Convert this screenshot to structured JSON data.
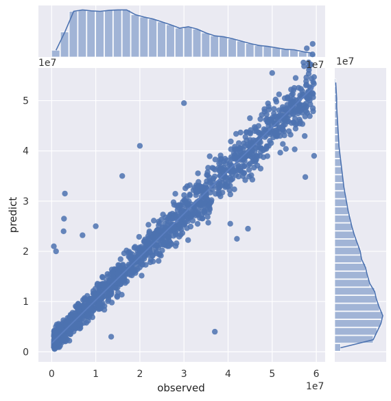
{
  "chart_data": {
    "type": "scatter",
    "subtype": "jointplot-regression-with-marginal-histograms-kde",
    "xlabel": "observed",
    "ylabel": "predict",
    "x_offset_text": "1e7",
    "y_offset_text": "1e7",
    "marginal_x_offset_text": "1e7",
    "marginal_y_offset_text": "1e7",
    "xlim": [
      -0.3,
      6.2
    ],
    "ylim": [
      -0.2,
      5.65
    ],
    "x_ticks": [
      0,
      1,
      2,
      3,
      4,
      5,
      6
    ],
    "y_ticks": [
      0,
      1,
      2,
      3,
      4,
      5
    ],
    "x_tick_labels": [
      "0",
      "1",
      "2",
      "3",
      "4",
      "5",
      "6"
    ],
    "y_tick_labels": [
      "0",
      "1",
      "2",
      "3",
      "4",
      "5"
    ],
    "units_multiplier": 10000000,
    "grid": true,
    "background": "#EAEAF2",
    "point_color": "#4C72B0",
    "hist_color": "#A1B4D6",
    "regression_line": {
      "slope": 0.86,
      "intercept": 0.17
    },
    "outliers": [
      {
        "x": 0.05,
        "y": 2.1
      },
      {
        "x": 0.1,
        "y": 2.0
      },
      {
        "x": 0.3,
        "y": 3.15
      },
      {
        "x": 0.28,
        "y": 2.65
      },
      {
        "x": 0.27,
        "y": 2.4
      },
      {
        "x": 0.7,
        "y": 2.32
      },
      {
        "x": 1.0,
        "y": 2.5
      },
      {
        "x": 1.6,
        "y": 3.5
      },
      {
        "x": 2.0,
        "y": 4.1
      },
      {
        "x": 3.0,
        "y": 4.95
      },
      {
        "x": 3.7,
        "y": 0.4
      },
      {
        "x": 5.0,
        "y": 5.55
      },
      {
        "x": 5.95,
        "y": 3.9
      },
      {
        "x": 5.75,
        "y": 3.48
      },
      {
        "x": 4.45,
        "y": 2.45
      },
      {
        "x": 4.2,
        "y": 2.25
      },
      {
        "x": 1.35,
        "y": 0.3
      },
      {
        "x": 0.55,
        "y": 0.65
      },
      {
        "x": 4.05,
        "y": 2.55
      },
      {
        "x": 3.55,
        "y": 2.57
      }
    ],
    "marginal_x_hist": {
      "bin_width": 0.2,
      "start": 0.0,
      "counts": [
        0.14,
        0.52,
        0.95,
        0.98,
        0.96,
        0.95,
        0.97,
        0.98,
        0.98,
        0.88,
        0.83,
        0.79,
        0.73,
        0.67,
        0.6,
        0.63,
        0.58,
        0.5,
        0.44,
        0.42,
        0.38,
        0.33,
        0.28,
        0.24,
        0.22,
        0.19,
        0.16,
        0.15,
        0.11,
        0.08
      ]
    },
    "marginal_y_hist": {
      "bin_width": 0.16,
      "start": 0.0,
      "counts": [
        0.12,
        0.8,
        0.88,
        0.96,
        1.0,
        0.93,
        0.87,
        0.83,
        0.73,
        0.68,
        0.64,
        0.56,
        0.53,
        0.47,
        0.41,
        0.36,
        0.32,
        0.28,
        0.25,
        0.22,
        0.19,
        0.17,
        0.15,
        0.13,
        0.11,
        0.09,
        0.08,
        0.07,
        0.06,
        0.05,
        0.04,
        0.04,
        0.03,
        0.02
      ]
    }
  }
}
